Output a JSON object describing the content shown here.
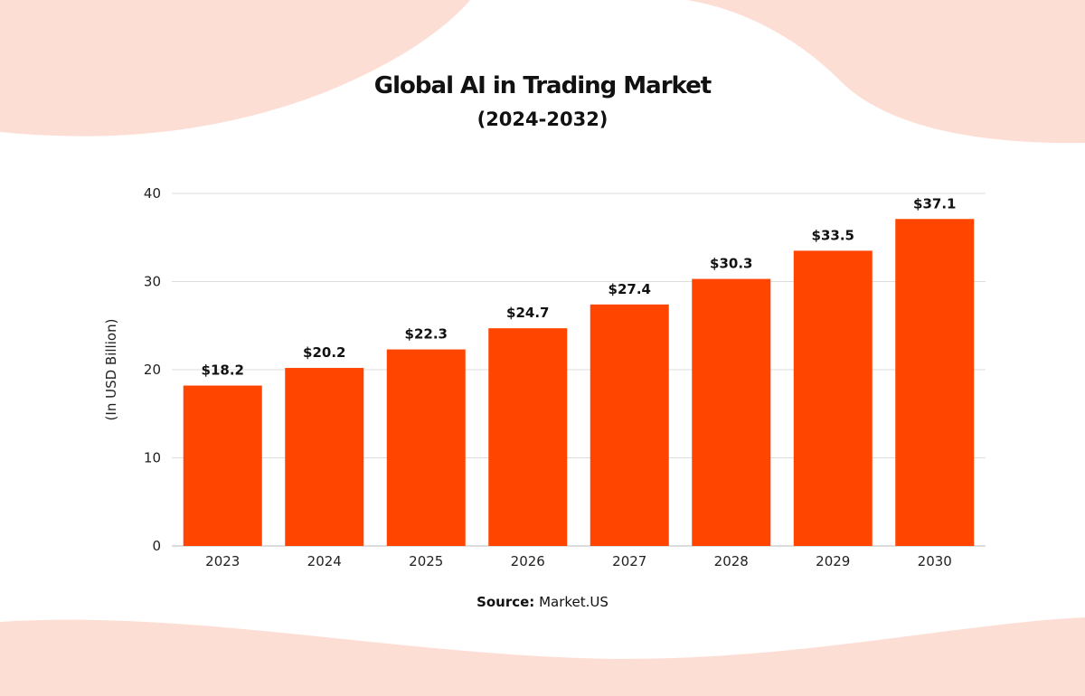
{
  "title": "Global AI in Trading Market",
  "subtitle": "(2024-2032)",
  "source_label": "Source:",
  "source_value": "Market.US",
  "colors": {
    "bar": "#FF4500",
    "background_wave": "#FDDED5",
    "grid": "#DDDDDD"
  },
  "chart_data": {
    "type": "bar",
    "title": "Global AI in Trading Market",
    "subtitle": "(2024-2032)",
    "categories": [
      "2023",
      "2024",
      "2025",
      "2026",
      "2027",
      "2028",
      "2029",
      "2030"
    ],
    "values": [
      18.2,
      20.2,
      22.3,
      24.7,
      27.4,
      30.3,
      33.5,
      37.1
    ],
    "data_labels": [
      "$18.2",
      "$20.2",
      "$22.3",
      "$24.7",
      "$27.4",
      "$30.3",
      "$33.5",
      "$37.1"
    ],
    "xlabel": "",
    "ylabel": "(In USD Billion)",
    "ylim": [
      0,
      40
    ],
    "yticks": [
      0,
      10,
      20,
      30,
      40
    ],
    "grid": true,
    "legend": "none"
  }
}
